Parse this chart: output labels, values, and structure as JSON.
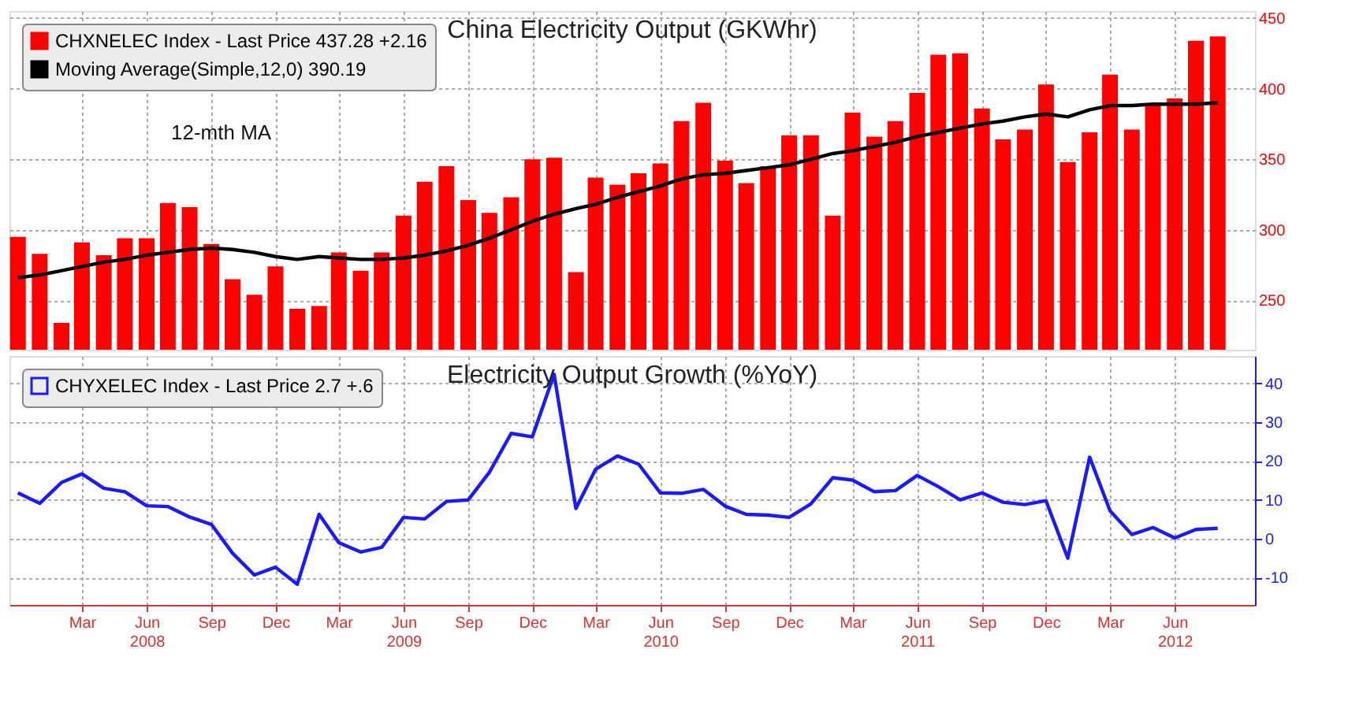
{
  "chart_data": [
    {
      "type": "bar",
      "title": "China Electricity Output (GKWhr)",
      "x": [
        "2007-12",
        "2008-01",
        "2008-02",
        "2008-03",
        "2008-04",
        "2008-05",
        "2008-06",
        "2008-07",
        "2008-08",
        "2008-09",
        "2008-10",
        "2008-11",
        "2008-12",
        "2009-01",
        "2009-02",
        "2009-03",
        "2009-04",
        "2009-05",
        "2009-06",
        "2009-07",
        "2009-08",
        "2009-09",
        "2009-10",
        "2009-11",
        "2009-12",
        "2010-01",
        "2010-02",
        "2010-03",
        "2010-04",
        "2010-05",
        "2010-06",
        "2010-07",
        "2010-08",
        "2010-09",
        "2010-10",
        "2010-11",
        "2010-12",
        "2011-01",
        "2011-02",
        "2011-03",
        "2011-04",
        "2011-05",
        "2011-06",
        "2011-07",
        "2011-08",
        "2011-09",
        "2011-10",
        "2011-11",
        "2011-12",
        "2012-01",
        "2012-02",
        "2012-03",
        "2012-04",
        "2012-05",
        "2012-06",
        "2012-07",
        "2012-08"
      ],
      "series": [
        {
          "name": "CHXNELEC Index - Last Price 437.28 +2.16",
          "color": "#ff0000",
          "values": [
            295,
            283,
            234,
            291,
            282,
            294,
            294,
            319,
            316,
            290,
            265,
            254,
            274,
            244,
            246,
            284,
            271,
            284,
            310,
            334,
            345,
            321,
            312,
            323,
            350,
            351,
            270,
            337,
            332,
            340,
            347,
            377,
            390,
            349,
            333,
            345,
            367,
            367,
            310,
            383,
            366,
            377,
            397,
            424,
            425,
            386,
            364,
            371,
            403,
            348,
            369,
            410,
            371,
            389,
            393,
            434,
            437
          ]
        },
        {
          "name": "Moving Average(Simple,12,0) 390.19",
          "type": "line",
          "color": "#000000",
          "values": [
            266,
            268,
            271,
            274,
            277,
            279,
            282,
            284,
            286,
            287,
            286,
            284,
            281,
            279,
            281,
            280,
            279,
            279,
            280,
            282,
            285,
            289,
            294,
            300,
            306,
            311,
            315,
            318,
            323,
            327,
            331,
            336,
            339,
            340,
            342,
            344,
            346,
            350,
            354,
            356,
            359,
            362,
            366,
            369,
            372,
            375,
            377,
            380,
            382,
            380,
            385,
            388,
            388,
            389,
            389,
            389,
            390
          ]
        }
      ],
      "xlim": [
        "2007-11-19",
        "2012-09-23"
      ],
      "ylim": [
        215,
        455
      ],
      "yticks": [
        250,
        300,
        350,
        400,
        450
      ],
      "xticks": [
        {
          "value": "2008-03",
          "label": null
        },
        {
          "value": "2008-06",
          "label": null
        },
        {
          "value": "2008-09",
          "label": null
        },
        {
          "value": "2008-12",
          "label": null
        },
        {
          "value": "2009-03",
          "label": null
        },
        {
          "value": "2009-06",
          "label": null
        },
        {
          "value": "2009-09",
          "label": null
        },
        {
          "value": "2009-12",
          "label": null
        },
        {
          "value": "2010-03",
          "label": null
        },
        {
          "value": "2010-06",
          "label": null
        },
        {
          "value": "2010-09",
          "label": null
        },
        {
          "value": "2010-12",
          "label": null
        },
        {
          "value": "2011-03",
          "label": null
        },
        {
          "value": "2011-06",
          "label": null
        },
        {
          "value": "2011-09",
          "label": null
        },
        {
          "value": "2011-12",
          "label": null
        },
        {
          "value": "2012-03",
          "label": null
        },
        {
          "value": "2012-06",
          "label": null
        }
      ],
      "tick_labels": "y",
      "grid": true,
      "legend": "top left",
      "annotations": [
        "12-mth MA"
      ]
    },
    {
      "type": "line",
      "title": "Electricity Output Growth (%YoY)",
      "x": [
        "2007-12",
        "2008-01",
        "2008-02",
        "2008-03",
        "2008-04",
        "2008-05",
        "2008-06",
        "2008-07",
        "2008-08",
        "2008-09",
        "2008-10",
        "2008-11",
        "2008-12",
        "2009-01",
        "2009-02",
        "2009-03",
        "2009-04",
        "2009-05",
        "2009-06",
        "2009-07",
        "2009-08",
        "2009-09",
        "2009-10",
        "2009-11",
        "2009-12",
        "2010-01",
        "2010-02",
        "2010-03",
        "2010-04",
        "2010-05",
        "2010-06",
        "2010-07",
        "2010-08",
        "2010-09",
        "2010-10",
        "2010-11",
        "2010-12",
        "2011-01",
        "2011-02",
        "2011-03",
        "2011-04",
        "2011-05",
        "2011-06",
        "2011-07",
        "2011-08",
        "2011-09",
        "2011-10",
        "2011-11",
        "2011-12",
        "2012-01",
        "2012-02",
        "2012-03",
        "2012-04",
        "2012-05",
        "2012-06",
        "2012-07",
        "2012-08"
      ],
      "series": [
        {
          "name": "CHYXELEC Index - Last Price 2.7 +.6",
          "color": "#1a1aff",
          "values": [
            11.8,
            9.1,
            14.5,
            16.7,
            13.0,
            12.1,
            8.5,
            8.3,
            5.6,
            3.7,
            -3.7,
            -9.3,
            -7.3,
            -11.7,
            6.3,
            -1.0,
            -3.4,
            -2.2,
            5.5,
            5.1,
            9.6,
            10.0,
            17.1,
            27.1,
            26.2,
            42.3,
            7.8,
            17.9,
            21.3,
            19.2,
            11.8,
            11.7,
            12.7,
            8.4,
            6.3,
            6.1,
            5.5,
            9.0,
            15.7,
            15.1,
            12.1,
            12.4,
            16.3,
            13.4,
            10.0,
            11.8,
            9.4,
            8.8,
            9.8,
            -5.0,
            21.0,
            7.2,
            1.1,
            2.9,
            0.2,
            2.4,
            2.7
          ]
        }
      ],
      "xlim": [
        "2007-11-19",
        "2012-09-23"
      ],
      "ylim": [
        -17,
        47
      ],
      "yticks": [
        -10,
        0,
        10,
        20,
        30,
        40
      ],
      "xticks": [
        {
          "value": "2008-03",
          "label": "Mar"
        },
        {
          "value": "2008-06",
          "label": "Jun 2008"
        },
        {
          "value": "2008-09",
          "label": "Sep"
        },
        {
          "value": "2008-12",
          "label": "Dec"
        },
        {
          "value": "2009-03",
          "label": "Mar"
        },
        {
          "value": "2009-06",
          "label": "Jun 2009"
        },
        {
          "value": "2009-09",
          "label": "Sep"
        },
        {
          "value": "2009-12",
          "label": "Dec"
        },
        {
          "value": "2010-03",
          "label": "Mar"
        },
        {
          "value": "2010-06",
          "label": "Jun 2010"
        },
        {
          "value": "2010-09",
          "label": "Sep"
        },
        {
          "value": "2010-12",
          "label": "Dec"
        },
        {
          "value": "2011-03",
          "label": "Mar"
        },
        {
          "value": "2011-06",
          "label": "Jun 2011"
        },
        {
          "value": "2011-09",
          "label": "Sep"
        },
        {
          "value": "2011-12",
          "label": "Dec"
        },
        {
          "value": "2012-03",
          "label": "Mar"
        },
        {
          "value": "2012-06",
          "label": "Jun 2012"
        }
      ],
      "grid": true,
      "legend": "top left"
    }
  ]
}
